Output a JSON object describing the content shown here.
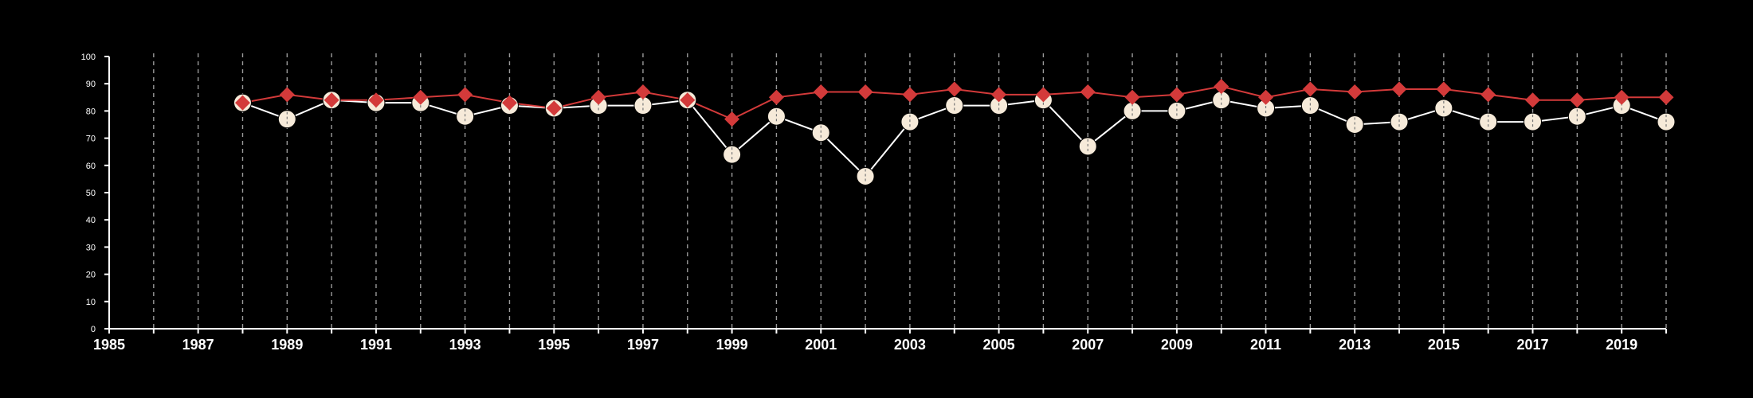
{
  "chart_data": {
    "type": "line",
    "x_ticks": [
      "1985",
      "1987",
      "1989",
      "1991",
      "1993",
      "1995",
      "1997",
      "1999",
      "2001",
      "2003",
      "2005",
      "2007",
      "2009",
      "2011",
      "2013",
      "2015",
      "2017",
      "2019"
    ],
    "y_ticks": [
      "0",
      "10",
      "20",
      "30",
      "40",
      "50",
      "60",
      "70",
      "80",
      "90",
      "100"
    ],
    "xlim": [
      1985,
      2020
    ],
    "ylim": [
      0,
      100
    ],
    "grid": "vertical dashed lines at each year",
    "series": [
      {
        "color": "#d33a3a",
        "marker": "diamond",
        "x": [
          1988,
          1989,
          1990,
          1991,
          1992,
          1993,
          1994,
          1995,
          1996,
          1997,
          1998,
          1999,
          2000,
          2001,
          2002,
          2003,
          2004,
          2005,
          2006,
          2007,
          2008,
          2009,
          2010,
          2011,
          2012,
          2013,
          2014,
          2015,
          2016,
          2017,
          2018,
          2019,
          2020
        ],
        "values": [
          83,
          86,
          84,
          84,
          85,
          86,
          83,
          81,
          85,
          87,
          84,
          77,
          85,
          87,
          87,
          86,
          88,
          86,
          86,
          87,
          85,
          86,
          89,
          85,
          88,
          87,
          88,
          88,
          86,
          84,
          84,
          85,
          85
        ]
      },
      {
        "color": "#f6ead9",
        "line_color": "#ffffff",
        "marker": "circle",
        "x": [
          1988,
          1989,
          1990,
          1991,
          1992,
          1993,
          1994,
          1995,
          1996,
          1997,
          1998,
          1999,
          2000,
          2001,
          2002,
          2003,
          2004,
          2005,
          2006,
          2007,
          2008,
          2009,
          2010,
          2011,
          2012,
          2013,
          2014,
          2015,
          2016,
          2017,
          2018,
          2019,
          2020
        ],
        "values": [
          83,
          77,
          84,
          83,
          83,
          78,
          82,
          81,
          82,
          82,
          84,
          64,
          78,
          72,
          56,
          76,
          82,
          82,
          84,
          67,
          80,
          80,
          84,
          81,
          82,
          75,
          76,
          81,
          76,
          76,
          78,
          82,
          76
        ]
      }
    ]
  }
}
